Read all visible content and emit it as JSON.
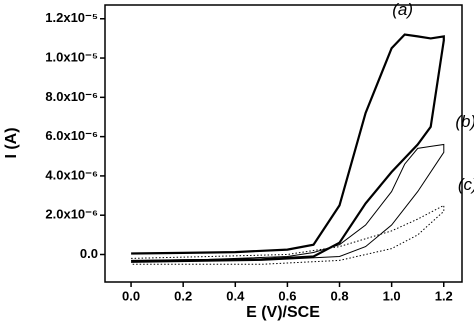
{
  "chart_data": {
    "type": "line",
    "x_label": "E (V)/SCE",
    "y_label": "I (A)",
    "xlim": [
      -0.1,
      1.27
    ],
    "ylim": [
      -1.4e-06,
      1.27e-05
    ],
    "xticks": [
      {
        "value": 0,
        "label": "0.0"
      },
      0.2,
      0.4,
      0.6,
      0.8,
      {
        "value": 1,
        "label": "1.0"
      },
      1.2
    ],
    "yticks": [
      {
        "value": 0,
        "label": "0.0"
      },
      {
        "value": 2e-06,
        "label": "2.0x10⁻⁶"
      },
      {
        "value": 4e-06,
        "label": "4.0x10⁻⁶"
      },
      {
        "value": 6e-06,
        "label": "6.0x10⁻⁶"
      },
      {
        "value": 8e-06,
        "label": "8.0x10⁻⁶"
      },
      {
        "value": 1e-05,
        "label": "1.0x10⁻⁵"
      },
      {
        "value": 1.2e-05,
        "label": "1.2x10⁻⁵"
      }
    ],
    "series": [
      {
        "name": "(a)",
        "color": "#000000",
        "line_style": "solid",
        "line_width": 2.2,
        "x": [
          0,
          0.2,
          0.4,
          0.6,
          0.7,
          0.8,
          0.9,
          1.0,
          1.05,
          1.1,
          1.15,
          1.2,
          1.2,
          1.15,
          1.1,
          1.0,
          0.9,
          0.8,
          0.7,
          0.5,
          0.2,
          0
        ],
        "values": [
          5e-08,
          8e-08,
          1.2e-07,
          2.5e-07,
          5e-07,
          2.5e-06,
          7.2e-06,
          1.05e-05,
          1.12e-05,
          1.11e-05,
          1.1e-05,
          1.11e-05,
          1.09e-05,
          6.5e-06,
          5.6e-06,
          4.2e-06,
          2.6e-06,
          6e-07,
          -1e-07,
          -2.5e-07,
          -3e-07,
          -3.5e-07
        ]
      },
      {
        "name": "(b)",
        "color": "#000000",
        "line_style": "solid",
        "line_width": 1,
        "x": [
          0,
          0.3,
          0.6,
          0.7,
          0.8,
          0.9,
          1.0,
          1.05,
          1.1,
          1.15,
          1.2,
          1.2,
          1.1,
          1.0,
          0.9,
          0.8,
          0.5,
          0
        ],
        "values": [
          -3e-07,
          -2.5e-07,
          -1e-07,
          1e-07,
          5e-07,
          1.5e-06,
          3.2e-06,
          4.6e-06,
          5.4e-06,
          5.5e-06,
          5.6e-06,
          5.2e-06,
          3.2e-06,
          1.5e-06,
          4e-07,
          -1e-07,
          -3e-07,
          -4e-07
        ]
      },
      {
        "name": "(c)",
        "color": "#000000",
        "line_style": "dotted",
        "line_width": 1,
        "x": [
          0,
          0.3,
          0.6,
          0.8,
          1.0,
          1.1,
          1.2,
          1.2,
          1.1,
          1.0,
          0.8,
          0.5,
          0
        ],
        "values": [
          -2e-07,
          -1e-07,
          0,
          4e-07,
          1.2e-06,
          1.8e-06,
          2.5e-06,
          2.2e-06,
          1e-06,
          3e-07,
          -3e-07,
          -5e-07,
          -5e-07
        ]
      }
    ]
  }
}
